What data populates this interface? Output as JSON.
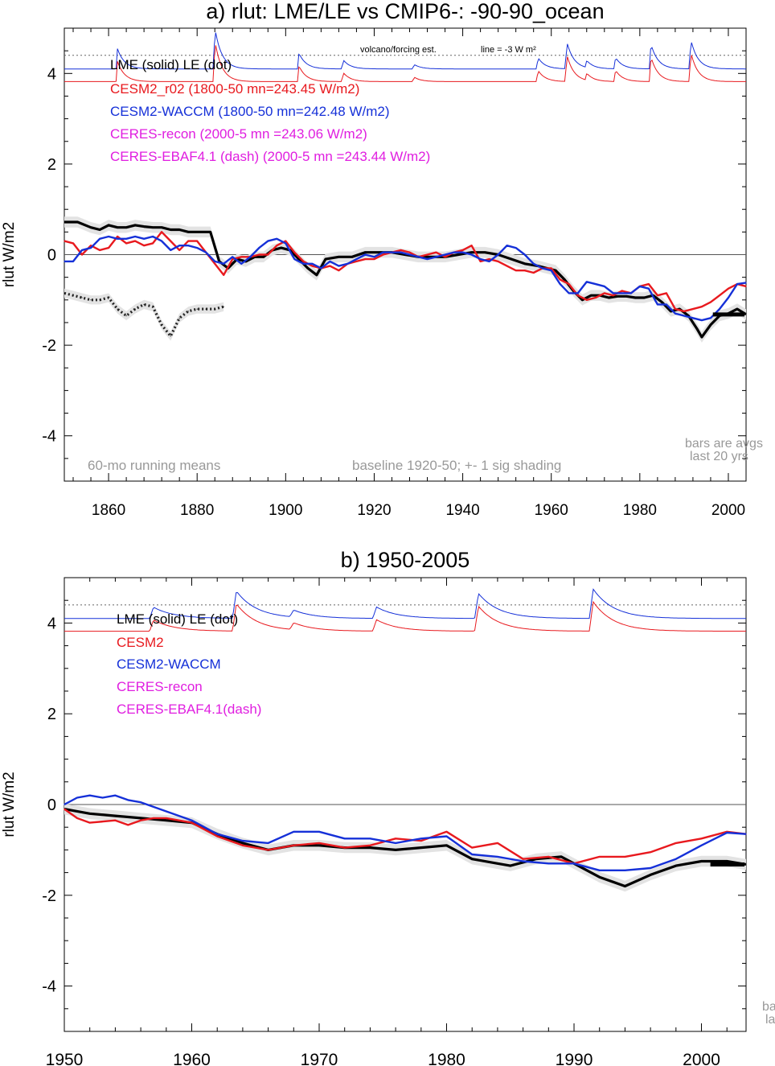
{
  "chart_data": [
    {
      "type": "line",
      "title": "a) rlut: LME/LE vs CMIP6-: -90-90_ocean",
      "ylabel": "rlut W/m2",
      "xlabel": "",
      "xlim": [
        1850,
        2004
      ],
      "ylim": [
        -5,
        5
      ],
      "xticks": [
        1860,
        1880,
        1900,
        1920,
        1940,
        1960,
        1980,
        2000
      ],
      "yticks": [
        4,
        2,
        0,
        -2,
        -4
      ],
      "grid": false,
      "legend_position": "top-left",
      "colors": {
        "black": "#000000",
        "red": "#e8191e",
        "blue": "#1530d8",
        "magenta": "#e01ee0",
        "gray": "#999999"
      },
      "legend": [
        {
          "text": "LME (solid)   LE (dot)",
          "color": "#000000"
        },
        {
          "text": "CESM2_r02 (1800-50 mn=243.45 W/m2)",
          "color": "#e8191e"
        },
        {
          "text": "CESM2-WACCM (1800-50 mn=242.48 W/m2)",
          "color": "#1530d8"
        },
        {
          "text": "CERES-recon (2000-5 mn =243.06 W/m2)",
          "color": "#e01ee0"
        },
        {
          "text": "CERES-EBAF4.1 (dash) (2000-5 mn =243.44 W/m2)",
          "color": "#e01ee0"
        }
      ],
      "annotations": {
        "forcing_label": "volcano/forcing est.",
        "line_label": "line = -3 W m²",
        "running_means": "60-mo running means",
        "baseline": "baseline 1920-50; +- 1 sig shading",
        "bars_line1": "bars are avgs",
        "bars_line2": "last 20 yrs"
      },
      "reference_line_y": 4.4,
      "series": [
        {
          "name": "LME",
          "color": "#000000",
          "style": "solid",
          "x": [
            1850,
            1853,
            1856,
            1858,
            1860,
            1862,
            1864,
            1866,
            1868,
            1870,
            1872,
            1874,
            1876,
            1878,
            1880,
            1883,
            1885,
            1887,
            1889,
            1891,
            1893,
            1895,
            1897,
            1899,
            1901,
            1903,
            1905,
            1907,
            1909,
            1912,
            1915,
            1918,
            1921,
            1924,
            1927,
            1930,
            1933,
            1936,
            1939,
            1942,
            1945,
            1948,
            1951,
            1954,
            1957,
            1959,
            1961,
            1963,
            1965,
            1967,
            1969,
            1971,
            1973,
            1975,
            1977,
            1979,
            1981,
            1983,
            1985,
            1987,
            1989,
            1991,
            1993,
            1994,
            1996,
            1998,
            2000,
            2002,
            2004
          ],
          "y": [
            0.72,
            0.72,
            0.6,
            0.55,
            0.65,
            0.6,
            0.6,
            0.65,
            0.62,
            0.6,
            0.6,
            0.55,
            0.55,
            0.5,
            0.5,
            0.5,
            -0.15,
            -0.3,
            -0.1,
            -0.15,
            -0.05,
            -0.05,
            0.1,
            0.15,
            0.1,
            -0.1,
            -0.3,
            -0.45,
            -0.1,
            -0.05,
            -0.05,
            0.05,
            0.05,
            0.05,
            0.0,
            -0.05,
            -0.05,
            -0.05,
            0.0,
            0.05,
            0.05,
            0.0,
            -0.1,
            -0.2,
            -0.25,
            -0.3,
            -0.35,
            -0.55,
            -0.8,
            -1.0,
            -0.9,
            -0.9,
            -0.95,
            -0.92,
            -0.92,
            -0.95,
            -0.95,
            -0.9,
            -1.05,
            -1.25,
            -1.2,
            -1.35,
            -1.65,
            -1.82,
            -1.55,
            -1.35,
            -1.3,
            -1.2,
            -1.32
          ],
          "band": 0.12
        },
        {
          "name": "LE",
          "color": "#000000",
          "style": "dot",
          "x": [
            1850,
            1852,
            1854,
            1856,
            1858,
            1860,
            1862,
            1864,
            1866,
            1868,
            1870,
            1872,
            1874,
            1876,
            1878,
            1880,
            1882,
            1884,
            1886
          ],
          "y": [
            -0.85,
            -0.9,
            -0.95,
            -1.0,
            -1.0,
            -0.95,
            -1.2,
            -1.35,
            -1.2,
            -1.1,
            -1.15,
            -1.55,
            -1.8,
            -1.4,
            -1.25,
            -1.2,
            -1.2,
            -1.2,
            -1.15
          ],
          "band": 0.1
        },
        {
          "name": "CESM2_r02",
          "color": "#e8191e",
          "style": "solid",
          "x": [
            1850,
            1852,
            1854,
            1856,
            1858,
            1860,
            1862,
            1864,
            1866,
            1868,
            1870,
            1872,
            1874,
            1876,
            1878,
            1880,
            1882,
            1884,
            1886,
            1888,
            1890,
            1892,
            1894,
            1896,
            1898,
            1900,
            1902,
            1904,
            1906,
            1908,
            1910,
            1912,
            1914,
            1916,
            1918,
            1920,
            1922,
            1924,
            1926,
            1928,
            1930,
            1932,
            1934,
            1936,
            1938,
            1940,
            1942,
            1944,
            1946,
            1948,
            1950,
            1952,
            1954,
            1956,
            1958,
            1960,
            1962,
            1964,
            1966,
            1968,
            1970,
            1972,
            1974,
            1976,
            1978,
            1980,
            1982,
            1984,
            1986,
            1988,
            1990,
            1992,
            1994,
            1996,
            1998,
            2000,
            2002,
            2004
          ],
          "y": [
            0.3,
            0.25,
            0.0,
            0.2,
            0.1,
            0.15,
            0.4,
            0.25,
            0.3,
            0.2,
            0.25,
            0.5,
            0.3,
            0.1,
            0.3,
            0.3,
            0.05,
            -0.2,
            -0.45,
            -0.1,
            -0.05,
            -0.05,
            0.0,
            0.0,
            0.2,
            0.3,
            0.05,
            -0.15,
            -0.25,
            -0.3,
            -0.25,
            -0.35,
            -0.2,
            -0.15,
            -0.1,
            -0.1,
            0.0,
            0.05,
            0.1,
            0.05,
            -0.05,
            0.0,
            0.05,
            -0.05,
            0.05,
            0.1,
            0.2,
            -0.15,
            -0.1,
            -0.15,
            -0.25,
            -0.35,
            -0.35,
            -0.4,
            -0.3,
            -0.3,
            -0.55,
            -0.65,
            -0.9,
            -1.0,
            -0.95,
            -0.85,
            -0.9,
            -0.8,
            -0.85,
            -0.7,
            -0.65,
            -0.9,
            -0.85,
            -1.2,
            -1.25,
            -1.2,
            -1.15,
            -1.05,
            -0.9,
            -0.75,
            -0.65,
            -0.7
          ]
        },
        {
          "name": "CESM2-WACCM",
          "color": "#1530d8",
          "style": "solid",
          "x": [
            1850,
            1852,
            1854,
            1856,
            1858,
            1860,
            1862,
            1864,
            1866,
            1868,
            1870,
            1872,
            1874,
            1876,
            1878,
            1880,
            1882,
            1884,
            1886,
            1888,
            1890,
            1892,
            1894,
            1896,
            1898,
            1900,
            1902,
            1904,
            1906,
            1908,
            1910,
            1912,
            1914,
            1916,
            1918,
            1920,
            1922,
            1924,
            1926,
            1928,
            1930,
            1932,
            1934,
            1936,
            1938,
            1940,
            1942,
            1944,
            1946,
            1948,
            1950,
            1952,
            1954,
            1956,
            1958,
            1960,
            1962,
            1964,
            1966,
            1968,
            1970,
            1972,
            1974,
            1976,
            1978,
            1980,
            1982,
            1984,
            1986,
            1988,
            1990,
            1992,
            1994,
            1996,
            1998,
            2000,
            2002,
            2004
          ],
          "y": [
            -0.15,
            -0.15,
            0.1,
            0.15,
            0.35,
            0.4,
            0.35,
            0.35,
            0.4,
            0.35,
            0.4,
            0.3,
            0.1,
            0.2,
            0.2,
            0.15,
            0.05,
            -0.15,
            -0.2,
            -0.05,
            -0.2,
            -0.05,
            0.15,
            0.3,
            0.35,
            0.25,
            -0.1,
            -0.2,
            -0.2,
            -0.3,
            -0.15,
            -0.25,
            -0.2,
            -0.1,
            0.0,
            -0.05,
            0.05,
            0.05,
            0.05,
            0.0,
            -0.05,
            -0.1,
            -0.05,
            0.0,
            0.05,
            0.05,
            0.0,
            -0.1,
            -0.15,
            0.0,
            0.2,
            0.15,
            0.0,
            -0.2,
            -0.3,
            -0.35,
            -0.65,
            -0.85,
            -0.85,
            -0.6,
            -0.65,
            -0.7,
            -0.85,
            -0.85,
            -0.85,
            -0.7,
            -0.75,
            -1.1,
            -1.1,
            -1.3,
            -1.35,
            -1.4,
            -1.45,
            -1.4,
            -1.2,
            -0.95,
            -0.65,
            -0.62
          ]
        }
      ]
    },
    {
      "type": "line",
      "title": "b) 1950-2005",
      "ylabel": "rlut W/m2",
      "xlabel": "",
      "xlim": [
        1950,
        2003.5
      ],
      "ylim": [
        -5,
        5
      ],
      "xticks": [
        1950,
        1960,
        1970,
        1980,
        1990,
        2000
      ],
      "yticks": [
        4,
        2,
        0,
        -2,
        -4
      ],
      "grid": false,
      "legend_position": "top-left",
      "legend": [
        {
          "text": "LME (solid)      LE (dot)",
          "color": "#000000"
        },
        {
          "text": "CESM2",
          "color": "#e8191e"
        },
        {
          "text": "CESM2-WACCM",
          "color": "#1530d8"
        },
        {
          "text": "CERES-recon",
          "color": "#e01ee0"
        },
        {
          "text": "CERES-EBAF4.1(dash)",
          "color": "#e01ee0"
        }
      ],
      "annotations": {
        "bars_line1": "ba",
        "bars_line2": "la"
      },
      "reference_line_y": 4.4,
      "series": [
        {
          "name": "LME",
          "color": "#000000",
          "style": "solid",
          "x": [
            1950,
            1952,
            1954,
            1956,
            1958,
            1960,
            1962,
            1964,
            1966,
            1968,
            1970,
            1972,
            1974,
            1976,
            1978,
            1980,
            1982,
            1984,
            1985,
            1987,
            1989,
            1990,
            1992,
            1994,
            1996,
            1998,
            2000,
            2002,
            2003.5
          ],
          "y": [
            -0.1,
            -0.2,
            -0.25,
            -0.3,
            -0.35,
            -0.4,
            -0.65,
            -0.85,
            -1.0,
            -0.9,
            -0.9,
            -0.95,
            -0.95,
            -1.0,
            -0.95,
            -0.9,
            -1.2,
            -1.3,
            -1.35,
            -1.2,
            -1.15,
            -1.3,
            -1.6,
            -1.8,
            -1.55,
            -1.35,
            -1.25,
            -1.25,
            -1.32
          ],
          "band": 0.12
        },
        {
          "name": "CESM2",
          "color": "#e8191e",
          "style": "solid",
          "x": [
            1950,
            1951,
            1952,
            1954,
            1955,
            1956,
            1957,
            1958,
            1960,
            1962,
            1964,
            1966,
            1968,
            1970,
            1972,
            1974,
            1976,
            1978,
            1980,
            1982,
            1984,
            1986,
            1988,
            1990,
            1992,
            1994,
            1996,
            1998,
            2000,
            2002,
            2003.5
          ],
          "y": [
            -0.1,
            -0.3,
            -0.4,
            -0.35,
            -0.45,
            -0.35,
            -0.3,
            -0.3,
            -0.4,
            -0.7,
            -0.9,
            -1.0,
            -0.9,
            -0.85,
            -0.95,
            -0.9,
            -0.75,
            -0.8,
            -0.6,
            -0.95,
            -0.85,
            -1.2,
            -1.15,
            -1.3,
            -1.15,
            -1.15,
            -1.05,
            -0.85,
            -0.75,
            -0.6,
            -0.65
          ]
        },
        {
          "name": "CESM2-WACCM",
          "color": "#1530d8",
          "style": "solid",
          "x": [
            1950,
            1951,
            1952,
            1953,
            1954,
            1955,
            1956,
            1958,
            1960,
            1962,
            1964,
            1966,
            1968,
            1970,
            1972,
            1974,
            1976,
            1978,
            1980,
            1982,
            1984,
            1986,
            1988,
            1990,
            1992,
            1994,
            1996,
            1998,
            2000,
            2002,
            2003.5
          ],
          "y": [
            0.0,
            0.15,
            0.2,
            0.15,
            0.2,
            0.1,
            0.05,
            -0.15,
            -0.35,
            -0.65,
            -0.8,
            -0.85,
            -0.6,
            -0.6,
            -0.75,
            -0.75,
            -0.85,
            -0.75,
            -0.7,
            -1.1,
            -1.15,
            -1.25,
            -1.3,
            -1.3,
            -1.45,
            -1.45,
            -1.4,
            -1.2,
            -0.9,
            -0.62,
            -0.65
          ]
        }
      ]
    }
  ]
}
